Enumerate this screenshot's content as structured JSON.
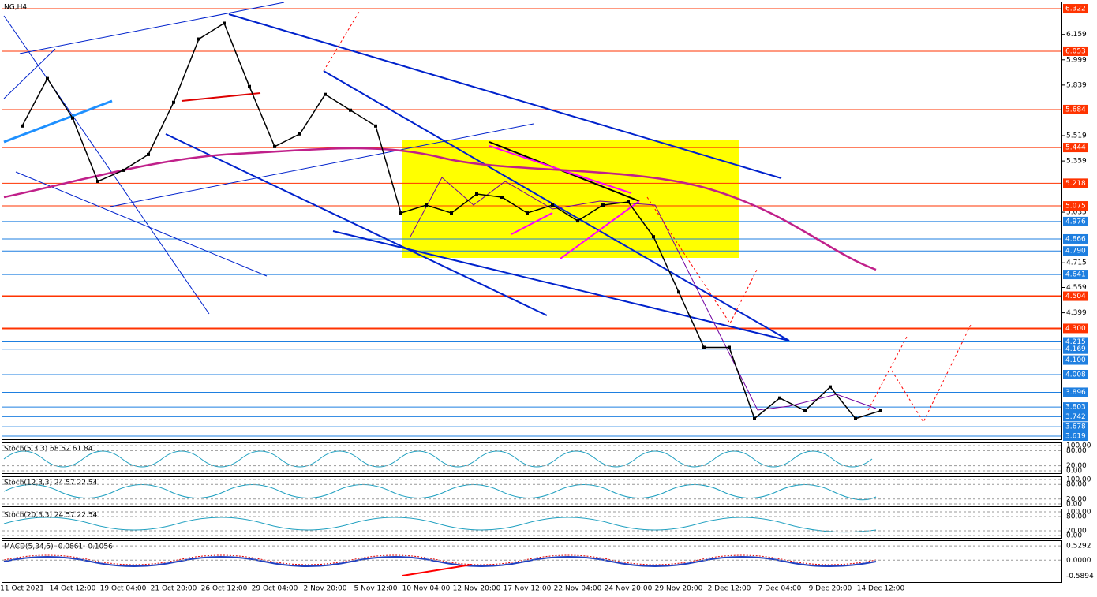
{
  "chart_data": {
    "type": "line",
    "title": "NG,H4",
    "categories": [
      "11 Oct 2021",
      null,
      "14 Oct 12:00",
      null,
      "19 Oct 04:00",
      null,
      "21 Oct 20:00",
      null,
      "26 Oct 12:00",
      null,
      "29 Oct 04:00",
      null,
      "2 Nov 20:00",
      null,
      "5 Nov 12:00",
      null,
      "10 Nov 04:00",
      null,
      "12 Nov 20:00",
      null,
      "17 Nov 12:00",
      null,
      "22 Nov 04:00",
      null,
      "24 Nov 20:00",
      null,
      "29 Nov 20:00",
      null,
      "2 Dec 12:00",
      null,
      "7 Dec 04:00",
      null,
      "9 Dec 20:00",
      null,
      "14 Dec 12:00"
    ],
    "values": [
      5.58,
      5.88,
      5.63,
      5.23,
      5.3,
      5.4,
      5.73,
      6.13,
      6.23,
      5.83,
      5.45,
      5.53,
      5.78,
      5.68,
      5.58,
      5.03,
      5.08,
      5.03,
      5.15,
      5.13,
      5.03,
      5.08,
      4.98,
      5.08,
      5.1,
      4.88,
      4.53,
      4.18,
      4.18,
      3.73,
      3.86,
      3.78,
      3.93,
      3.73,
      3.78
    ],
    "color": "#000000",
    "ylim": [
      3.599,
      6.362
    ],
    "yticks": [
      6.159,
      5.999,
      5.839,
      5.519,
      5.359,
      5.035,
      4.715,
      4.559,
      4.399
    ],
    "levels": [
      6.322,
      6.053,
      5.684,
      5.444,
      5.218,
      5.075,
      4.976,
      4.866,
      {
        "value": 4.79,
        "label": "4.790"
      },
      4.641,
      4.504,
      {
        "value": 4.3,
        "label": "4.300"
      },
      4.215,
      4.169,
      {
        "value": 4.1,
        "label": "4.100"
      },
      4.008,
      3.896,
      3.803,
      3.742,
      3.678,
      3.619
    ],
    "level_colors": [
      "#ff3300",
      "#ff3300",
      "#ff3300",
      "#ff3300",
      "#ff3300",
      "#ff3300",
      "#1e7fe0",
      "#1e7fe0",
      "#1e7fe0",
      "#1e7fe0",
      "#ff3300",
      "#ff3300",
      "#1e7fe0",
      "#1e7fe0",
      "#1e7fe0",
      "#1e7fe0",
      "#1e7fe0",
      "#1e7fe0",
      "#1e7fe0",
      "#1e7fe0",
      "#1e7fe0"
    ],
    "indicators": [
      {
        "label": "Stoch(5,3,3) 68.52 61.84",
        "ylim": [
          0,
          100
        ],
        "ticks": [
          {
            "value": 100,
            "label": "100.00"
          },
          {
            "value": 80,
            "label": "80.00"
          },
          {
            "value": 20,
            "label": "20.00"
          },
          {
            "value": 0,
            "label": "0.00"
          }
        ]
      },
      {
        "label": "Stoch(12,3,3) 24.57 22.54",
        "ylim": [
          0,
          100
        ],
        "ticks": [
          {
            "value": 100,
            "label": "100.00"
          },
          {
            "value": 80,
            "label": "80.00"
          },
          {
            "value": 20,
            "label": "20.00"
          },
          {
            "value": 0,
            "label": "0.00"
          }
        ]
      },
      {
        "label": "Stoch(20,3,3) 24.57 22.54",
        "ylim": [
          0,
          100
        ],
        "ticks": [
          {
            "value": 100,
            "label": "100.00"
          },
          {
            "value": 80,
            "label": "80.00"
          },
          {
            "value": 20,
            "label": "20.00"
          },
          {
            "value": 0,
            "label": "0.00"
          }
        ]
      },
      {
        "label": "MACD(5,34,5) -0.0861 -0.1056",
        "ylim": [
          -0.72,
          0.62
        ],
        "ticks": [
          0.5292,
          {
            "value": 0,
            "label": "0.0000"
          },
          -0.5894
        ]
      }
    ]
  }
}
